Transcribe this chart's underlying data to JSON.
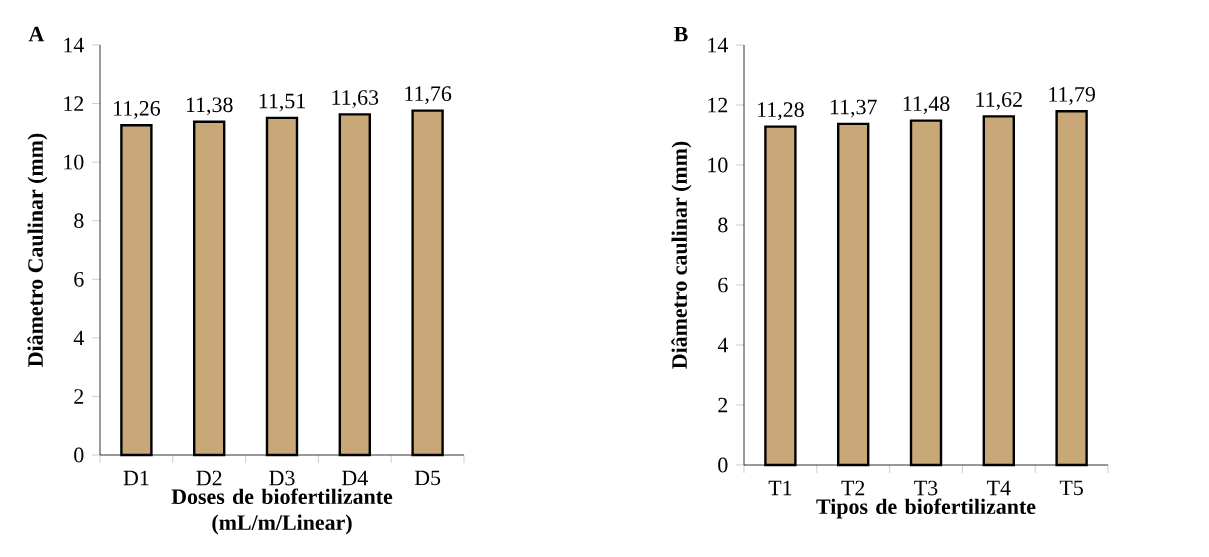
{
  "chart_data": [
    {
      "type": "bar",
      "title": "A",
      "xlabel": "Doses de biofertilizante (mL/m/Linear)",
      "ylabel": "Diâmetro Caulinar (mm)",
      "categories": [
        "D1",
        "D2",
        "D3",
        "D4",
        "D5"
      ],
      "values": [
        11.26,
        11.38,
        11.51,
        11.63,
        11.76
      ],
      "value_labels": [
        "11,26",
        "11,38",
        "11,51",
        "11,63",
        "11,76"
      ],
      "color": "#c8a878",
      "ylim": [
        0,
        14
      ],
      "yticks": [
        0,
        2,
        4,
        6,
        8,
        10,
        12,
        14
      ]
    },
    {
      "type": "bar",
      "title": "B",
      "xlabel": "Tipos de biofertilizante",
      "ylabel": "Diâmetro caulinar (mm)",
      "categories": [
        "T1",
        "T2",
        "T3",
        "T4",
        "T5"
      ],
      "values": [
        11.28,
        11.37,
        11.48,
        11.62,
        11.79
      ],
      "value_labels": [
        "11,28",
        "11,37",
        "11,48",
        "11,62",
        "11,79"
      ],
      "color": "#c8a878",
      "ylim": [
        0,
        14
      ],
      "yticks": [
        0,
        2,
        4,
        6,
        8,
        10,
        12,
        14
      ]
    }
  ]
}
